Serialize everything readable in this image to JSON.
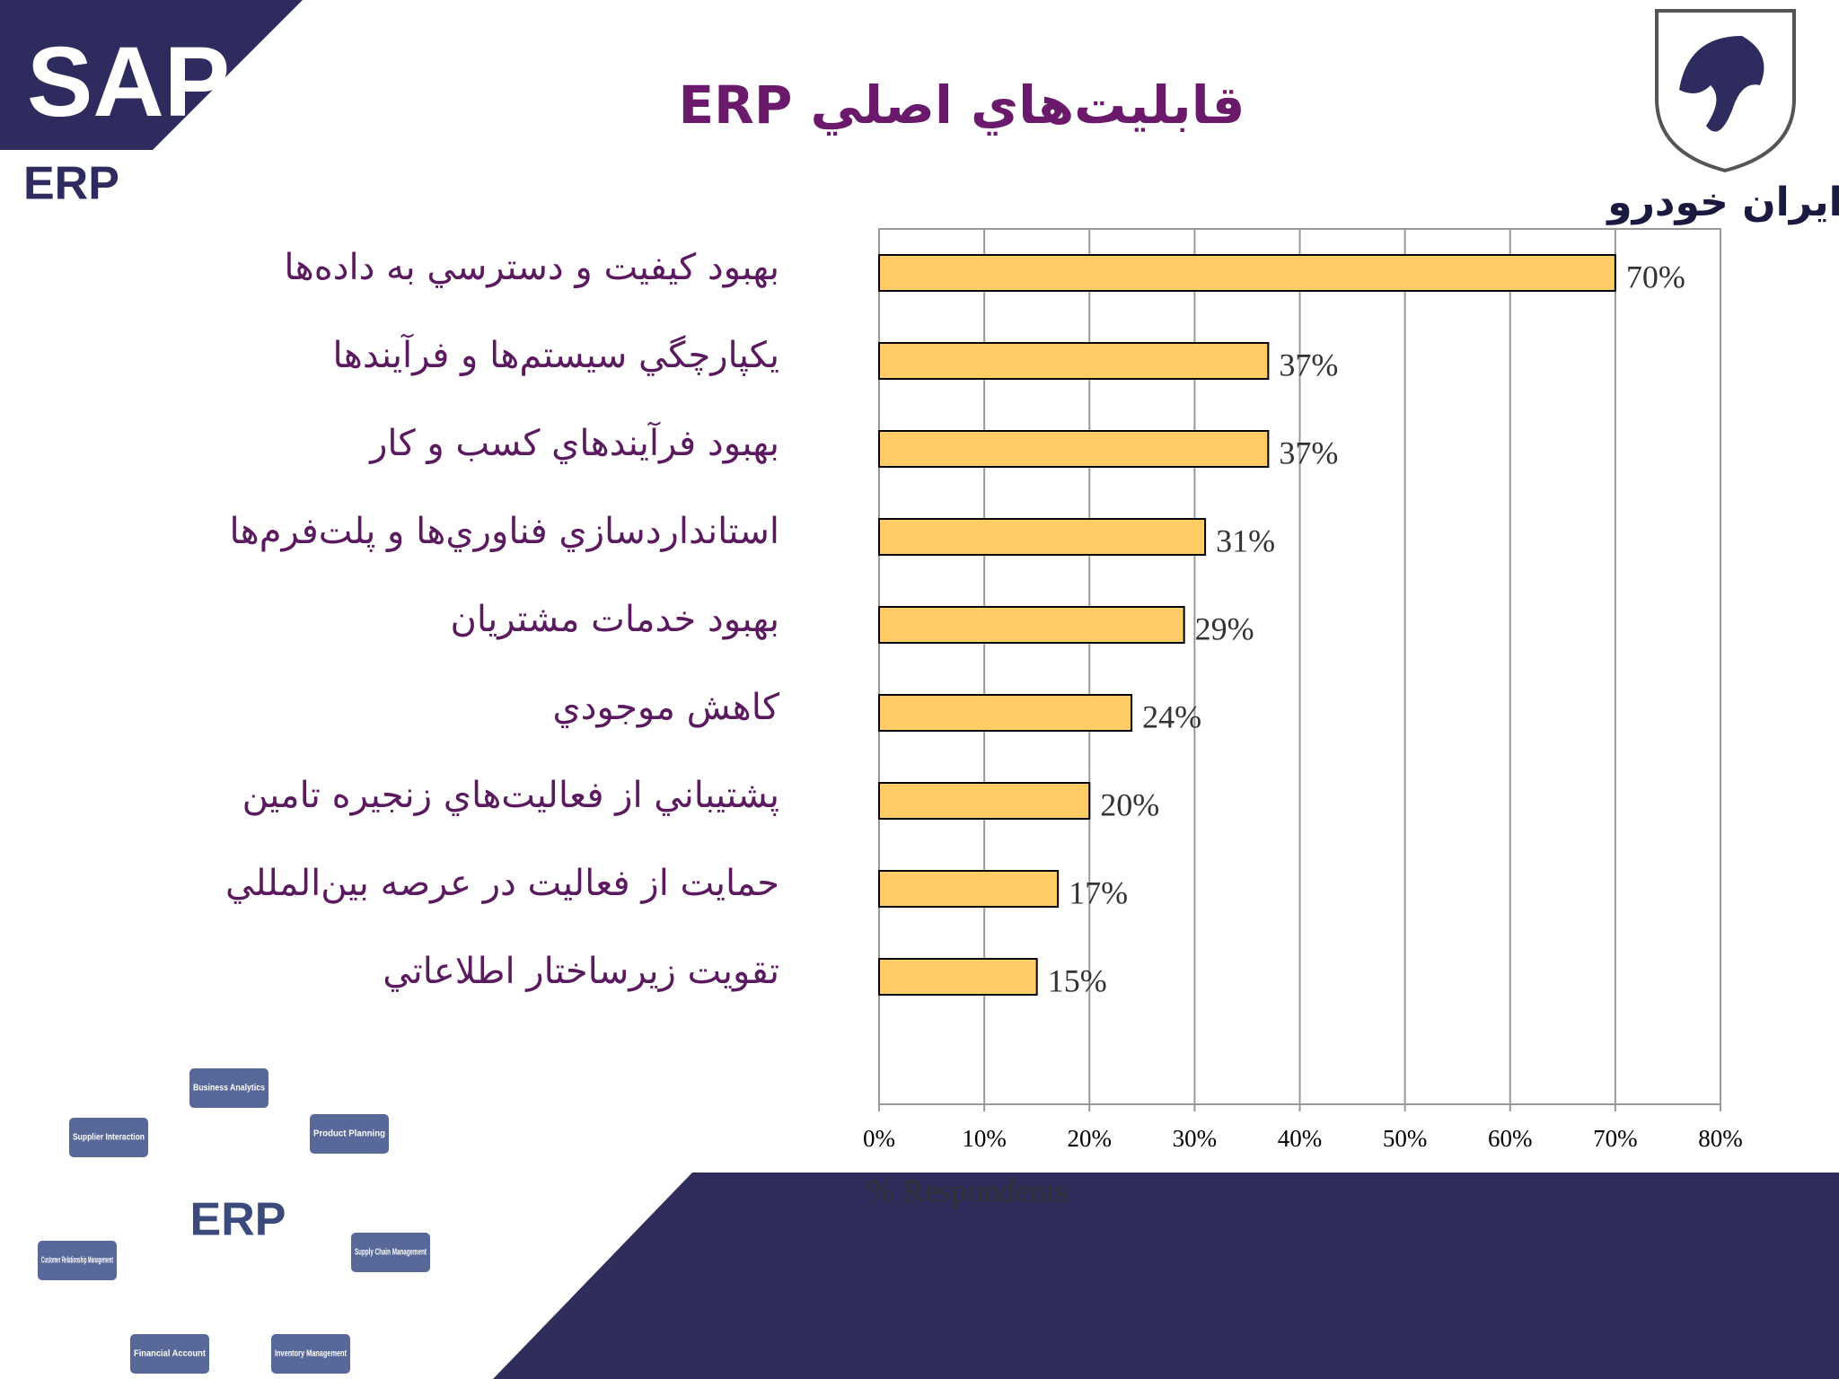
{
  "logo": {
    "brand": "SAP",
    "product": "ERP",
    "company": "ایران خودرو"
  },
  "chart_data": {
    "type": "bar",
    "orientation": "horizontal",
    "title": "قابليت‌هاي اصلي ERP",
    "categories": [
      "بهبود كيفيت و دسترسي به داده‌ها",
      "يكپارچگي سيستم‌ها و فرآيندها",
      "بهبود فرآيندهاي كسب و كار",
      "استانداردسازي فناوري‌ها و پلت‌فرم‌ها",
      "بهبود خدمات مشتريان",
      "كاهش موجودي",
      "پشتيباني از فعاليت‌هاي زنجيره تامين",
      "حمايت از فعاليت در عرصه بين‌المللي",
      "تقويت زيرساختار اطلاعاتي"
    ],
    "values": [
      70,
      37,
      37,
      31,
      29,
      24,
      20,
      17,
      15
    ],
    "value_labels": [
      "70%",
      "37%",
      "37%",
      "31%",
      "29%",
      "24%",
      "20%",
      "17%",
      "15%"
    ],
    "color": "#ffcc66",
    "xlim": [
      0,
      80
    ],
    "xticks": [
      {
        "value": 0,
        "label": "0%"
      },
      {
        "value": 10,
        "label": "10%"
      },
      {
        "value": 20,
        "label": "20%"
      },
      {
        "value": 30,
        "label": "30%"
      },
      {
        "value": 40,
        "label": "40%"
      },
      {
        "value": 50,
        "label": "50%"
      },
      {
        "value": 60,
        "label": "60%"
      },
      {
        "value": 70,
        "label": "70%"
      },
      {
        "value": 80,
        "label": "80%"
      }
    ],
    "xlabel": "% Respondents",
    "grid": true
  },
  "diagram": {
    "center": "ERP",
    "modules": [
      "Business Analytics",
      "Supplier Interaction",
      "Product Planning",
      "Customer Relationship Management",
      "Supply Chain Management",
      "Financial Account",
      "Inventory Management"
    ]
  }
}
